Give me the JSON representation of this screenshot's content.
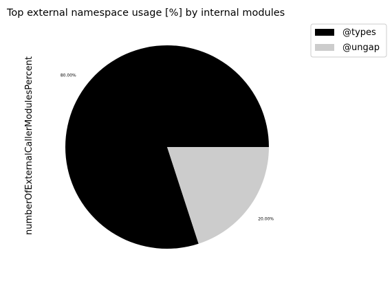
{
  "chart_data": {
    "type": "pie",
    "title": "Top external namespace usage [%] by internal modules",
    "ylabel": "numberOfExternalCallerModulesPercent",
    "slices": [
      {
        "label": "@types",
        "value": 80.0,
        "display": "80.00%",
        "color": "#000000"
      },
      {
        "label": "@ungap",
        "value": 20.0,
        "display": "20.00%",
        "color": "#cccccc"
      }
    ],
    "legend_position": "top-right"
  }
}
